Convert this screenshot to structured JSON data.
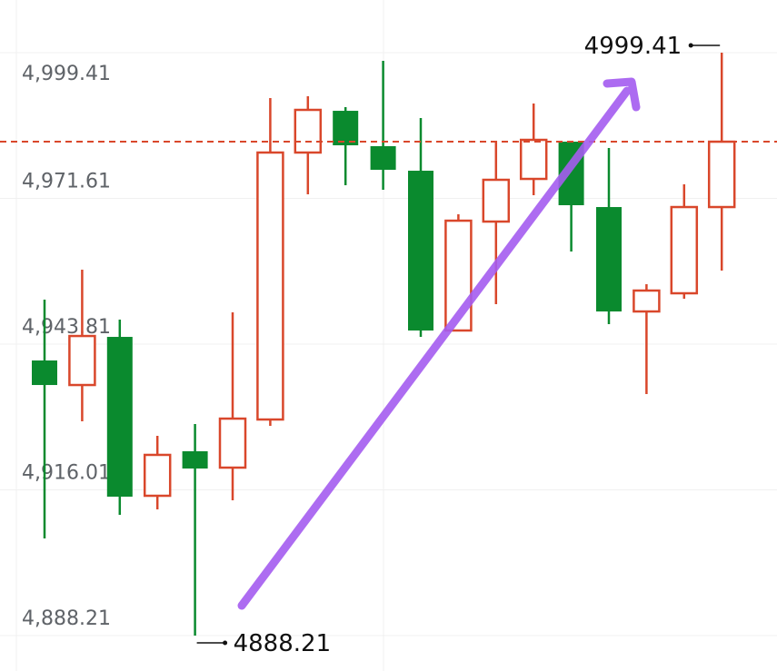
{
  "chart_data": {
    "type": "candlestick",
    "ylim": [
      4881.45,
      5009.46
    ],
    "yticks": [
      {
        "value": 4888.21,
        "label": "4,888.21"
      },
      {
        "value": 4916.01,
        "label": "4,916.01"
      },
      {
        "value": 4943.81,
        "label": "4,943.81"
      },
      {
        "value": 4971.61,
        "label": "4,971.61"
      },
      {
        "value": 4999.41,
        "label": "4,999.41"
      }
    ],
    "grid": true,
    "up_color": "#d9472b",
    "down_color": "#0a8a2e",
    "price_line": 4982.43,
    "price_line_color": "#d9472b",
    "max_label": "4999.41",
    "min_label": "4888.21",
    "open": [
      4940.69,
      4936.01,
      4945.19,
      4914.88,
      4923.37,
      4920.25,
      4929.43,
      4980.36,
      4988.32,
      4981.57,
      4976.89,
      4946.41,
      4967.19,
      4975.33,
      4982.43,
      4969.96,
      4950.04,
      4953.51,
      4969.96
    ],
    "high": [
      4952.29,
      4958.01,
      4948.48,
      4926.31,
      4928.56,
      4949.87,
      4990.75,
      4991.1,
      4989.02,
      4997.85,
      4986.94,
      4968.58,
      4982.61,
      4989.71,
      4982.61,
      4981.22,
      4955.24,
      4974.29,
      4999.41
    ],
    "low": [
      4906.74,
      4929.08,
      4911.24,
      4912.28,
      4888.21,
      4914.01,
      4928.21,
      4972.39,
      4974.12,
      4973.25,
      4945.19,
      4946.41,
      4951.43,
      4972.21,
      4961.47,
      4947.62,
      4934.28,
      4952.47,
      4957.84
    ],
    "close": [
      4936.01,
      4945.36,
      4914.71,
      4922.68,
      4920.08,
      4929.6,
      4980.36,
      4988.5,
      4981.74,
      4977.07,
      4946.41,
      4967.36,
      4975.16,
      4982.78,
      4970.31,
      4950.04,
      4954.03,
      4969.96,
      4982.43
    ]
  }
}
